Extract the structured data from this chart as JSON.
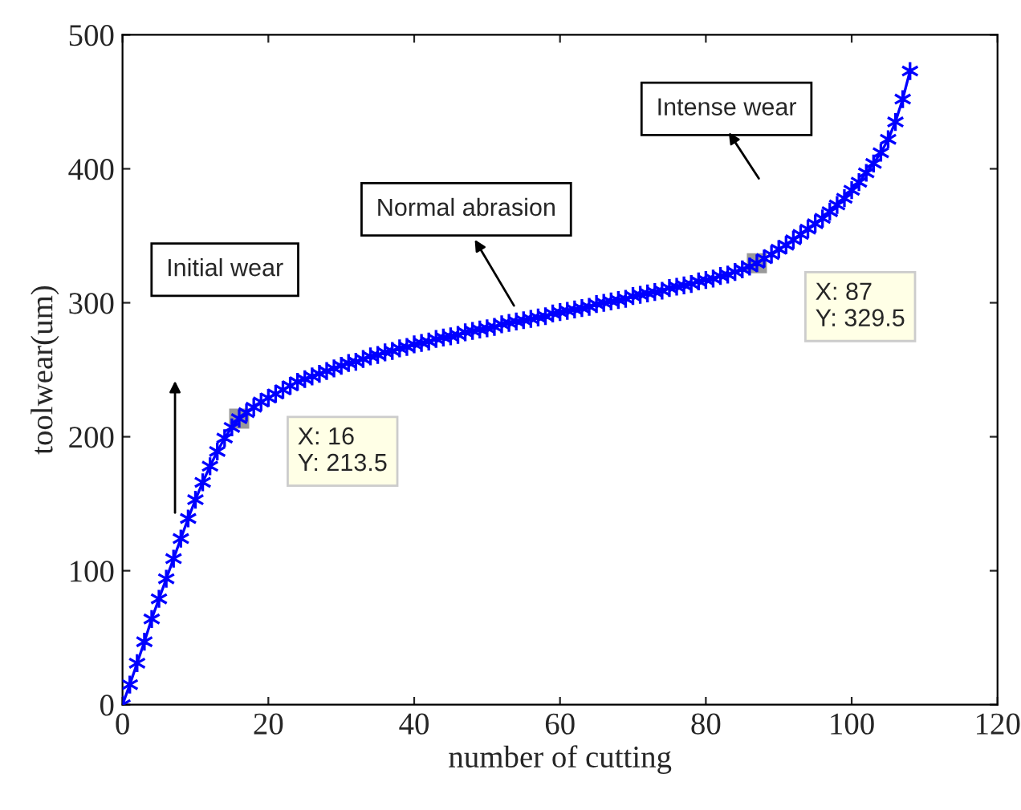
{
  "chart_data": {
    "type": "line",
    "xlabel": "number of cutting",
    "ylabel": "toolwear(um)",
    "xlim": [
      0,
      120
    ],
    "xticks": [
      0,
      20,
      40,
      60,
      80,
      100,
      120
    ],
    "ylim": [
      0,
      500
    ],
    "yticks": [
      0,
      100,
      200,
      300,
      400,
      500
    ],
    "grid": false,
    "marker": "cross",
    "line_style": "solid",
    "series": [
      {
        "color": "#0000ff",
        "x": [
          0,
          1,
          2,
          3,
          4,
          5,
          6,
          7,
          8,
          9,
          10,
          11,
          12,
          13,
          14,
          15,
          16,
          17,
          18,
          19,
          20,
          21,
          22,
          23,
          24,
          25,
          26,
          27,
          28,
          29,
          30,
          31,
          32,
          33,
          34,
          35,
          36,
          37,
          38,
          39,
          40,
          41,
          42,
          43,
          44,
          45,
          46,
          47,
          48,
          49,
          50,
          51,
          52,
          53,
          54,
          55,
          56,
          57,
          58,
          59,
          60,
          61,
          62,
          63,
          64,
          65,
          66,
          67,
          68,
          69,
          70,
          71,
          72,
          73,
          74,
          75,
          76,
          77,
          78,
          79,
          80,
          81,
          82,
          83,
          84,
          85,
          86,
          87,
          88,
          89,
          90,
          91,
          92,
          93,
          94,
          95,
          96,
          97,
          98,
          99,
          100,
          101,
          102,
          103,
          104,
          105,
          106,
          107,
          108
        ],
        "values": [
          0,
          15,
          31,
          47,
          64,
          79,
          94,
          109,
          124,
          139,
          153,
          166,
          178,
          189,
          199,
          207,
          213.5,
          218,
          222,
          226,
          229,
          232,
          235,
          238,
          241,
          243,
          245,
          247,
          249,
          251,
          253,
          255,
          256,
          258,
          260,
          261,
          263,
          264,
          266,
          267,
          269,
          270,
          271,
          273,
          274,
          275,
          276,
          278,
          279,
          280,
          281,
          282,
          284,
          285,
          286,
          287,
          288,
          289,
          290,
          292,
          293,
          294,
          295,
          296,
          297,
          299,
          300,
          301,
          302,
          303,
          305,
          306,
          307,
          308,
          309,
          311,
          312,
          313,
          314,
          316,
          317,
          318,
          320,
          321,
          323,
          325,
          327,
          329.5,
          333,
          336,
          340,
          343,
          347,
          351,
          355,
          359,
          363,
          368,
          373,
          378,
          384,
          390,
          397,
          404,
          412,
          422,
          435,
          452,
          473
        ]
      }
    ],
    "annotations": [
      {
        "text": "X: 16\nY: 213.5",
        "x": 16,
        "y": 213.5
      },
      {
        "text": "X: 87\nY: 329.5",
        "x": 87,
        "y": 329.5
      },
      "Initial wear",
      "Normal abrasion",
      "Intense wear"
    ]
  }
}
